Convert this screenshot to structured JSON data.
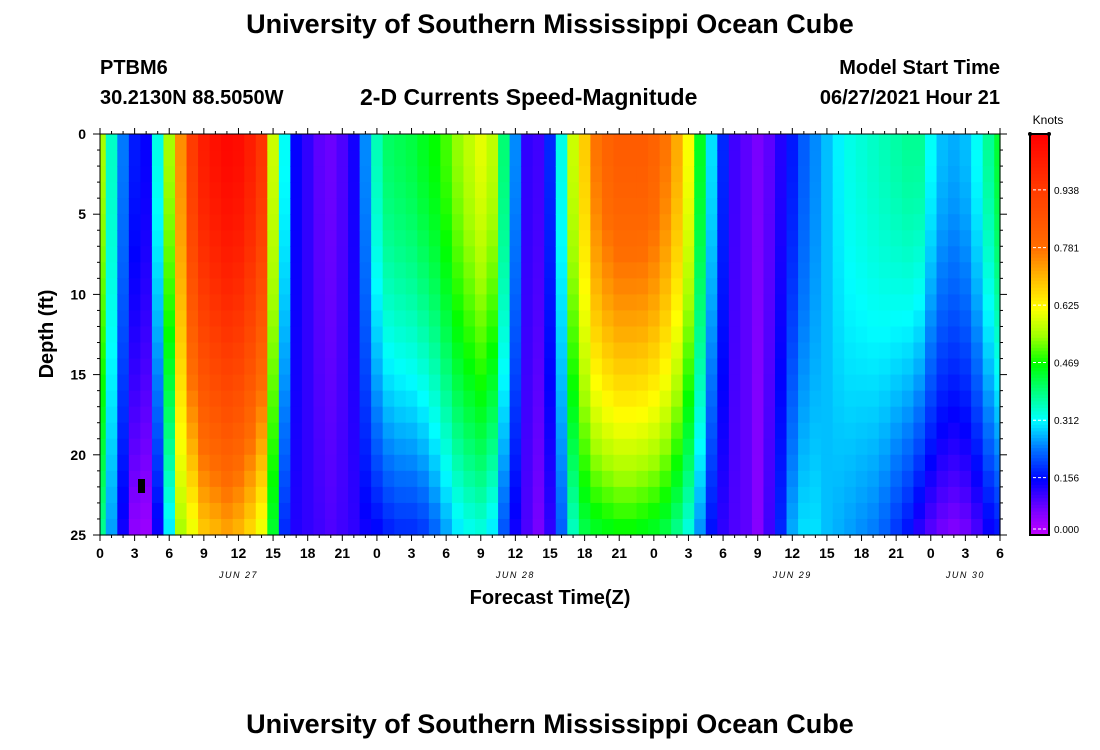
{
  "page": {
    "title_top": "University of Southern Mississippi Ocean Cube",
    "title_bottom": "University of Southern Mississippi Ocean Cube",
    "station_id": "PTBM6",
    "station_coords": "30.2130N  88.5050W",
    "model_label": "Model Start Time",
    "model_time": "06/27/2021 Hour 21"
  },
  "chart_data": {
    "type": "heatmap",
    "title": "2-D Currents Speed-Magnitude",
    "xlabel": "Forecast Time(Z)",
    "ylabel": "Depth (ft)",
    "x_range_hours": [
      0,
      78
    ],
    "y_range_ft": [
      0,
      25
    ],
    "x_ticks": [
      {
        "h": 0,
        "label": "0"
      },
      {
        "h": 3,
        "label": "3"
      },
      {
        "h": 6,
        "label": "6"
      },
      {
        "h": 9,
        "label": "9"
      },
      {
        "h": 12,
        "label": "12"
      },
      {
        "h": 15,
        "label": "15"
      },
      {
        "h": 18,
        "label": "18"
      },
      {
        "h": 21,
        "label": "21"
      },
      {
        "h": 24,
        "label": "0"
      },
      {
        "h": 27,
        "label": "3"
      },
      {
        "h": 30,
        "label": "6"
      },
      {
        "h": 33,
        "label": "9"
      },
      {
        "h": 36,
        "label": "12"
      },
      {
        "h": 39,
        "label": "15"
      },
      {
        "h": 42,
        "label": "18"
      },
      {
        "h": 45,
        "label": "21"
      },
      {
        "h": 48,
        "label": "0"
      },
      {
        "h": 51,
        "label": "3"
      },
      {
        "h": 54,
        "label": "6"
      },
      {
        "h": 57,
        "label": "9"
      },
      {
        "h": 60,
        "label": "12"
      },
      {
        "h": 63,
        "label": "15"
      },
      {
        "h": 66,
        "label": "18"
      },
      {
        "h": 69,
        "label": "21"
      },
      {
        "h": 72,
        "label": "0"
      },
      {
        "h": 75,
        "label": "3"
      },
      {
        "h": 78,
        "label": "6"
      }
    ],
    "date_labels": [
      {
        "h": 12,
        "label": "JUN 27"
      },
      {
        "h": 36,
        "label": "JUN 28"
      },
      {
        "h": 60,
        "label": "JUN 29"
      },
      {
        "h": 75,
        "label": "JUN 30"
      }
    ],
    "y_ticks": [
      {
        "ft": 0,
        "label": "0"
      },
      {
        "ft": 5,
        "label": "5"
      },
      {
        "ft": 10,
        "label": "10"
      },
      {
        "ft": 15,
        "label": "15"
      },
      {
        "ft": 20,
        "label": "20"
      },
      {
        "ft": 25,
        "label": "25"
      }
    ],
    "colorbar": {
      "unit": "Knots",
      "min": 0.0,
      "max": 1.09,
      "ticks": [
        {
          "v": 0.0,
          "label": "0.000"
        },
        {
          "v": 0.156,
          "label": "0.156"
        },
        {
          "v": 0.312,
          "label": "0.312"
        },
        {
          "v": 0.469,
          "label": "0.469"
        },
        {
          "v": 0.625,
          "label": "0.625"
        },
        {
          "v": 0.781,
          "label": "0.781"
        },
        {
          "v": 0.938,
          "label": "0.938"
        }
      ]
    },
    "columns": [
      {
        "h": 0,
        "top": 0.55,
        "bot": 0.38
      },
      {
        "h": 1,
        "top": 0.35,
        "bot": 0.26
      },
      {
        "h": 2,
        "top": 0.24,
        "bot": 0.14
      },
      {
        "h": 3,
        "top": 0.17,
        "bot": 0.05
      },
      {
        "h": 4,
        "top": 0.15,
        "bot": 0.04
      },
      {
        "h": 5,
        "top": 0.33,
        "bot": 0.14
      },
      {
        "h": 6,
        "top": 0.55,
        "bot": 0.3
      },
      {
        "h": 7,
        "top": 0.75,
        "bot": 0.55
      },
      {
        "h": 8,
        "top": 0.94,
        "bot": 0.6
      },
      {
        "h": 9,
        "top": 1.02,
        "bot": 0.68
      },
      {
        "h": 10,
        "top": 1.05,
        "bot": 0.7
      },
      {
        "h": 11,
        "top": 1.07,
        "bot": 0.72
      },
      {
        "h": 12,
        "top": 1.06,
        "bot": 0.7
      },
      {
        "h": 13,
        "top": 1.02,
        "bot": 0.66
      },
      {
        "h": 14,
        "top": 0.96,
        "bot": 0.6
      },
      {
        "h": 15,
        "top": 0.58,
        "bot": 0.44
      },
      {
        "h": 16,
        "top": 0.32,
        "bot": 0.18
      },
      {
        "h": 17,
        "top": 0.15,
        "bot": 0.13
      },
      {
        "h": 18,
        "top": 0.12,
        "bot": 0.12
      },
      {
        "h": 19,
        "top": 0.09,
        "bot": 0.11
      },
      {
        "h": 20,
        "top": 0.08,
        "bot": 0.1
      },
      {
        "h": 21,
        "top": 0.1,
        "bot": 0.11
      },
      {
        "h": 22,
        "top": 0.14,
        "bot": 0.12
      },
      {
        "h": 23,
        "top": 0.25,
        "bot": 0.14
      },
      {
        "h": 24,
        "top": 0.36,
        "bot": 0.15
      },
      {
        "h": 25,
        "top": 0.41,
        "bot": 0.17
      },
      {
        "h": 26,
        "top": 0.42,
        "bot": 0.18
      },
      {
        "h": 27,
        "top": 0.43,
        "bot": 0.18
      },
      {
        "h": 28,
        "top": 0.45,
        "bot": 0.19
      },
      {
        "h": 29,
        "top": 0.47,
        "bot": 0.22
      },
      {
        "h": 30,
        "top": 0.5,
        "bot": 0.26
      },
      {
        "h": 31,
        "top": 0.54,
        "bot": 0.3
      },
      {
        "h": 32,
        "top": 0.57,
        "bot": 0.32
      },
      {
        "h": 33,
        "top": 0.6,
        "bot": 0.33
      },
      {
        "h": 34,
        "top": 0.57,
        "bot": 0.3
      },
      {
        "h": 35,
        "top": 0.4,
        "bot": 0.21
      },
      {
        "h": 36,
        "top": 0.25,
        "bot": 0.14
      },
      {
        "h": 37,
        "top": 0.12,
        "bot": 0.1
      },
      {
        "h": 38,
        "top": 0.11,
        "bot": 0.07
      },
      {
        "h": 39,
        "top": 0.18,
        "bot": 0.12
      },
      {
        "h": 40,
        "top": 0.33,
        "bot": 0.22
      },
      {
        "h": 41,
        "top": 0.58,
        "bot": 0.35
      },
      {
        "h": 42,
        "top": 0.68,
        "bot": 0.42
      },
      {
        "h": 43,
        "top": 0.78,
        "bot": 0.44
      },
      {
        "h": 44,
        "top": 0.82,
        "bot": 0.45
      },
      {
        "h": 45,
        "top": 0.84,
        "bot": 0.46
      },
      {
        "h": 46,
        "top": 0.84,
        "bot": 0.46
      },
      {
        "h": 47,
        "top": 0.84,
        "bot": 0.45
      },
      {
        "h": 48,
        "top": 0.82,
        "bot": 0.44
      },
      {
        "h": 49,
        "top": 0.78,
        "bot": 0.42
      },
      {
        "h": 50,
        "top": 0.72,
        "bot": 0.38
      },
      {
        "h": 51,
        "top": 0.62,
        "bot": 0.33
      },
      {
        "h": 52,
        "top": 0.45,
        "bot": 0.25
      },
      {
        "h": 53,
        "top": 0.3,
        "bot": 0.16
      },
      {
        "h": 54,
        "top": 0.18,
        "bot": 0.12
      },
      {
        "h": 55,
        "top": 0.11,
        "bot": 0.1
      },
      {
        "h": 56,
        "top": 0.09,
        "bot": 0.09
      },
      {
        "h": 57,
        "top": 0.07,
        "bot": 0.06
      },
      {
        "h": 58,
        "top": 0.09,
        "bot": 0.11
      },
      {
        "h": 59,
        "top": 0.13,
        "bot": 0.18
      },
      {
        "h": 60,
        "top": 0.17,
        "bot": 0.27
      },
      {
        "h": 61,
        "top": 0.22,
        "bot": 0.3
      },
      {
        "h": 62,
        "top": 0.25,
        "bot": 0.3
      },
      {
        "h": 63,
        "top": 0.28,
        "bot": 0.28
      },
      {
        "h": 64,
        "top": 0.31,
        "bot": 0.27
      },
      {
        "h": 65,
        "top": 0.33,
        "bot": 0.26
      },
      {
        "h": 66,
        "top": 0.34,
        "bot": 0.25
      },
      {
        "h": 67,
        "top": 0.35,
        "bot": 0.24
      },
      {
        "h": 68,
        "top": 0.36,
        "bot": 0.22
      },
      {
        "h": 69,
        "top": 0.37,
        "bot": 0.19
      },
      {
        "h": 70,
        "top": 0.38,
        "bot": 0.16
      },
      {
        "h": 71,
        "top": 0.38,
        "bot": 0.12
      },
      {
        "h": 72,
        "top": 0.32,
        "bot": 0.09
      },
      {
        "h": 73,
        "top": 0.28,
        "bot": 0.07
      },
      {
        "h": 74,
        "top": 0.27,
        "bot": 0.06
      },
      {
        "h": 75,
        "top": 0.28,
        "bot": 0.07
      },
      {
        "h": 76,
        "top": 0.32,
        "bot": 0.1
      },
      {
        "h": 77,
        "top": 0.38,
        "bot": 0.14
      },
      {
        "h": 78,
        "top": 0.44,
        "bot": 0.16
      }
    ]
  }
}
